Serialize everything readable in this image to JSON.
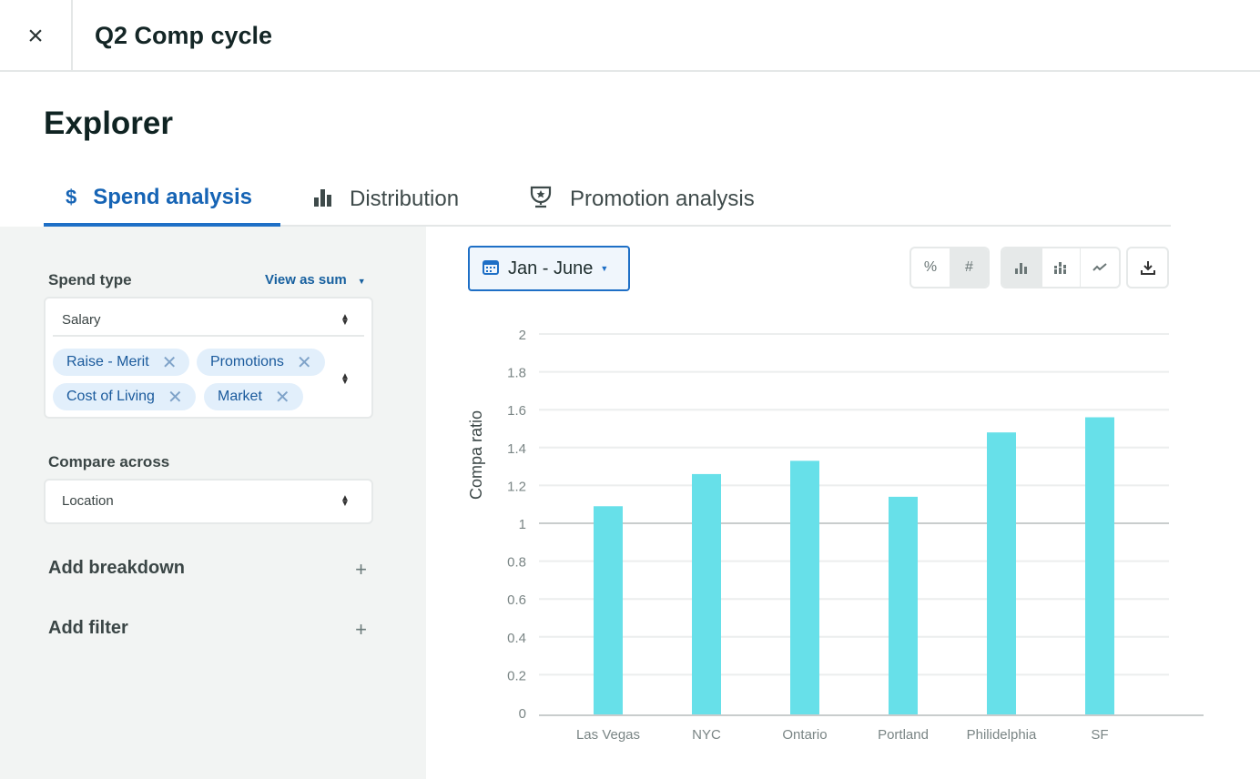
{
  "header": {
    "close_icon": "×",
    "title": "Q2 Comp cycle"
  },
  "page_title": "Explorer",
  "tabs": [
    {
      "icon": "$",
      "label": "Spend analysis"
    },
    {
      "icon": "bar-chart",
      "label": "Distribution"
    },
    {
      "icon": "trophy",
      "label": "Promotion analysis"
    }
  ],
  "sidebar": {
    "spend_type_label": "Spend type",
    "view_as": "View as sum",
    "spend_type_value": "Salary",
    "chips": [
      "Raise - Merit",
      "Promotions",
      "Cost of Living",
      "Market"
    ],
    "compare_label": "Compare across",
    "compare_value": "Location",
    "add_breakdown": "Add breakdown",
    "add_filter": "Add filter",
    "plus": "+"
  },
  "toolbar": {
    "date_range": "Jan - June",
    "percent": "%",
    "number": "#"
  },
  "colors": {
    "accent": "#1e6fc6",
    "bar": "#67e0e9"
  },
  "chart_data": {
    "type": "bar",
    "ylabel": "Compa ratio",
    "xlabel": "",
    "ylim": [
      0,
      2
    ],
    "yticks": [
      "0",
      "0.2",
      "0.4",
      "0.6",
      "0.8",
      "1",
      "1.2",
      "1.4",
      "1.6",
      "1.8",
      "2"
    ],
    "categories": [
      "Las Vegas",
      "NYC",
      "Ontario",
      "Portland",
      "Philidelphia",
      "SF"
    ],
    "values": [
      1.09,
      1.26,
      1.33,
      1.14,
      1.48,
      1.56
    ],
    "reference_line": 1
  }
}
